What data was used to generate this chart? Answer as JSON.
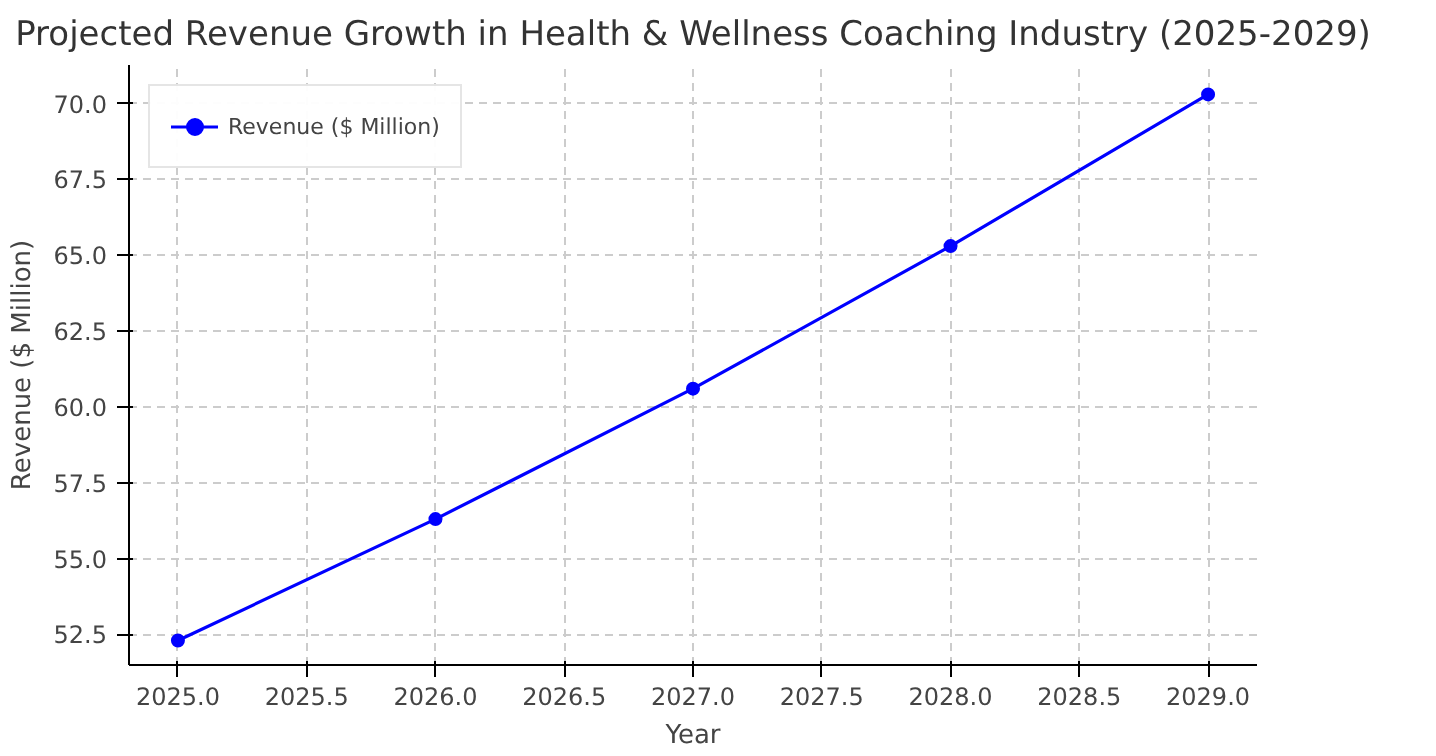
{
  "chart_data": {
    "type": "line",
    "title": "Projected Revenue Growth in Health & Wellness Coaching Industry (2025-2029)",
    "xlabel": "Year",
    "ylabel": "Revenue ($ Million)",
    "x": [
      2025,
      2026,
      2027,
      2028,
      2029
    ],
    "series": [
      {
        "name": "Revenue ($ Million)",
        "color": "#0000ff",
        "values": [
          52.3,
          56.3,
          60.6,
          65.3,
          70.3
        ]
      }
    ],
    "xlim": [
      2024.81,
      2029.19
    ],
    "xticks": [
      {
        "value": 2025,
        "label": "2025.0"
      },
      {
        "value": 2025.5,
        "label": "2025.5"
      },
      {
        "value": 2026,
        "label": "2026.0"
      },
      {
        "value": 2026.5,
        "label": "2026.5"
      },
      {
        "value": 2027,
        "label": "2027.0"
      },
      {
        "value": 2027.5,
        "label": "2027.5"
      },
      {
        "value": 2028,
        "label": "2028.0"
      },
      {
        "value": 2028.5,
        "label": "2028.5"
      },
      {
        "value": 2029,
        "label": "2029.0"
      }
    ],
    "ylim": [
      51.49,
      71.27
    ],
    "yticks": [
      {
        "value": 52.5,
        "label": "52.5"
      },
      {
        "value": 55,
        "label": "55.0"
      },
      {
        "value": 57.5,
        "label": "57.5"
      },
      {
        "value": 60,
        "label": "60.0"
      },
      {
        "value": 62.5,
        "label": "62.5"
      },
      {
        "value": 65,
        "label": "65.0"
      },
      {
        "value": 67.5,
        "label": "67.5"
      },
      {
        "value": 70,
        "label": "70.0"
      }
    ],
    "grid": true,
    "legend": "top left",
    "marker": "circle",
    "line_style": "solid"
  }
}
